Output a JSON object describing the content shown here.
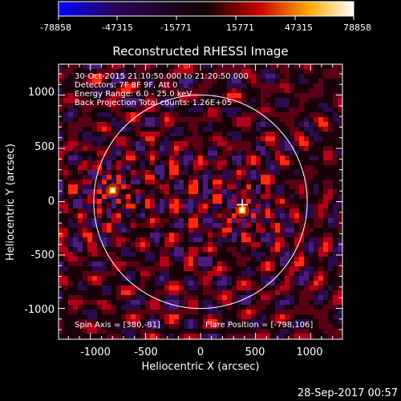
{
  "colorbar": {
    "tick_labels": [
      "-78858",
      "-47315",
      "-15771",
      "15771",
      "47315",
      "78858"
    ],
    "stops": [
      "#0000ff",
      "#2a0055",
      "#000000",
      "#cc0000",
      "#ffaa00",
      "#ffffff"
    ]
  },
  "plot": {
    "title": "Reconstructed RHESSI Image",
    "xlabel": "Heliocentric X (arcsec)",
    "ylabel": "Heliocentric Y (arcsec)",
    "x_ticks": [
      "-1000",
      "-500",
      "0",
      "500",
      "1000"
    ],
    "y_ticks": [
      "1000",
      "500",
      "0",
      "-500",
      "-1000"
    ],
    "xlim": [
      -1290,
      1290
    ],
    "ylim": [
      -1290,
      1290
    ],
    "solar_disk_radius_arcsec": 970,
    "sources": [
      {
        "x": -798,
        "y": 106
      },
      {
        "x": 380,
        "y": -81
      }
    ]
  },
  "annotations": {
    "time_range": "30-Oct-2015 21:10:50.000 to 21:20:50.000",
    "detectors": "Detectors: 7F 8F 9F, Att 0",
    "energy": "Energy Range: 6.0 - 25.0 keV",
    "method": "Back Projection    Total counts: 1.26E+05",
    "spin_axis": "Spin Axis = [380,-81]",
    "flare_position": "Flare Position = [-798,106]"
  },
  "footer": {
    "timestamp": "28-Sep-2017 00:57"
  }
}
